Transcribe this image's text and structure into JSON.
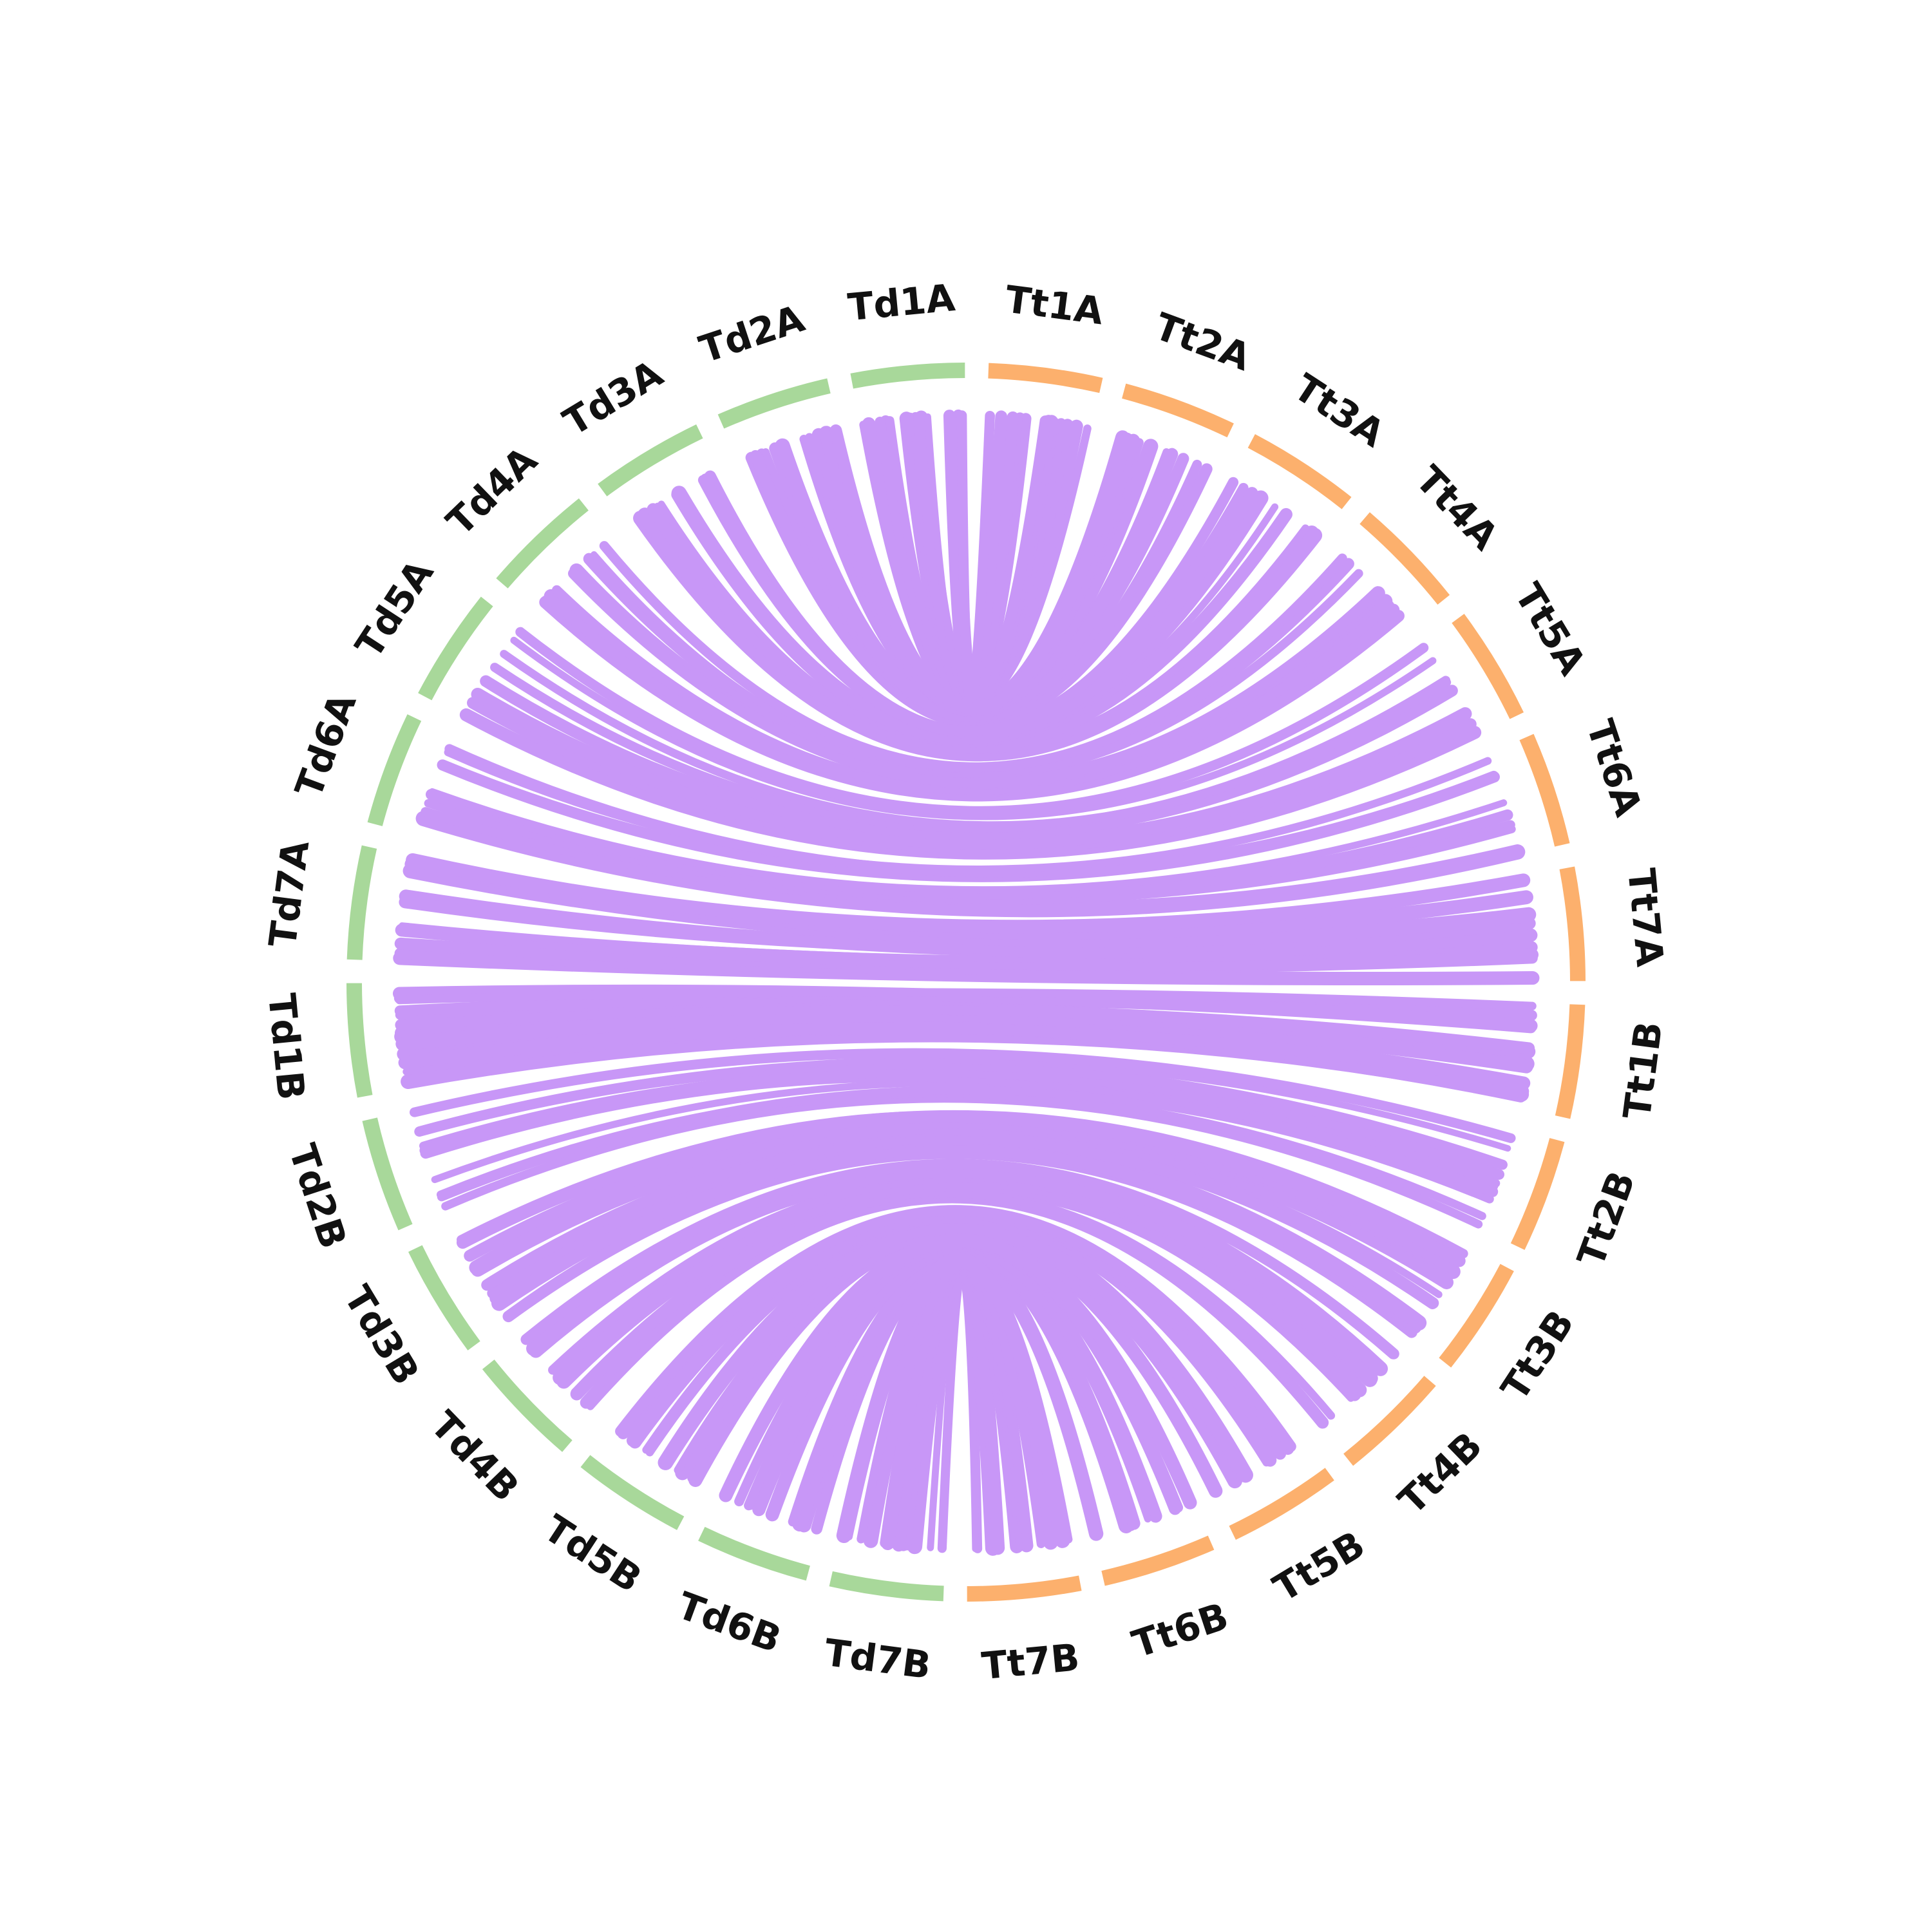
{
  "colors": {
    "left_group": "#a8d89a",
    "right_group": "#fcb06d",
    "link": "#c897f7",
    "background": "#ffffff",
    "label": "#111111"
  },
  "chromosomes": [
    {
      "name": "Tt1A",
      "group": "right"
    },
    {
      "name": "Tt2A",
      "group": "right"
    },
    {
      "name": "Tt3A",
      "group": "right"
    },
    {
      "name": "Tt4A",
      "group": "right"
    },
    {
      "name": "Tt5A",
      "group": "right"
    },
    {
      "name": "Tt6A",
      "group": "right"
    },
    {
      "name": "Tt7A",
      "group": "right"
    },
    {
      "name": "Tt1B",
      "group": "right"
    },
    {
      "name": "Tt2B",
      "group": "right"
    },
    {
      "name": "Tt3B",
      "group": "right"
    },
    {
      "name": "Tt4B",
      "group": "right"
    },
    {
      "name": "Tt5B",
      "group": "right"
    },
    {
      "name": "Tt6B",
      "group": "right"
    },
    {
      "name": "Tt7B",
      "group": "right"
    },
    {
      "name": "Td7B",
      "group": "left"
    },
    {
      "name": "Td6B",
      "group": "left"
    },
    {
      "name": "Td5B",
      "group": "left"
    },
    {
      "name": "Td4B",
      "group": "left"
    },
    {
      "name": "Td3B",
      "group": "left"
    },
    {
      "name": "Td2B",
      "group": "left"
    },
    {
      "name": "Td1B",
      "group": "left"
    },
    {
      "name": "Td7A",
      "group": "left"
    },
    {
      "name": "Td6A",
      "group": "left"
    },
    {
      "name": "Td5A",
      "group": "left"
    },
    {
      "name": "Td4A",
      "group": "left"
    },
    {
      "name": "Td3A",
      "group": "left"
    },
    {
      "name": "Td2A",
      "group": "left"
    },
    {
      "name": "Td1A",
      "group": "left"
    }
  ],
  "links": [
    {
      "from": "Td1A",
      "to": "Tt1A",
      "count": 14
    },
    {
      "from": "Td2A",
      "to": "Tt2A",
      "count": 12
    },
    {
      "from": "Td3A",
      "to": "Tt3A",
      "count": 10
    },
    {
      "from": "Td4A",
      "to": "Tt4A",
      "count": 10
    },
    {
      "from": "Td5A",
      "to": "Tt5A",
      "count": 8
    },
    {
      "from": "Td6A",
      "to": "Tt6A",
      "count": 8
    },
    {
      "from": "Td7A",
      "to": "Tt7A",
      "count": 10
    },
    {
      "from": "Td1B",
      "to": "Tt1B",
      "count": 14
    },
    {
      "from": "Td2B",
      "to": "Tt2B",
      "count": 10
    },
    {
      "from": "Td3B",
      "to": "Tt3B",
      "count": 12
    },
    {
      "from": "Td4B",
      "to": "Tt4B",
      "count": 12
    },
    {
      "from": "Td5B",
      "to": "Tt5B",
      "count": 12
    },
    {
      "from": "Td6B",
      "to": "Tt6B",
      "count": 12
    },
    {
      "from": "Td7B",
      "to": "Tt7B",
      "count": 14
    }
  ]
}
